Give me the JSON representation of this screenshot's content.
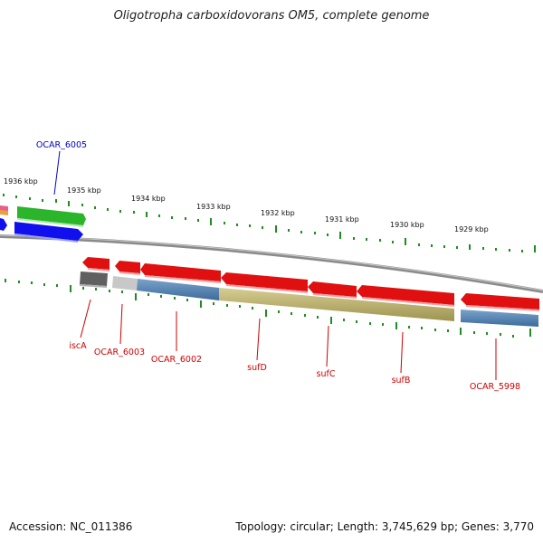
{
  "title": "Oligotropha carboxidovorans OM5, complete genome",
  "footer": {
    "accession": "Accession: NC_011386",
    "summary": "Topology: circular; Length: 3,745,629 bp; Genes: 3,770"
  },
  "scale_labels": [
    "1936 kbp",
    "1935 kbp",
    "1934 kbp",
    "1933 kbp",
    "1932 kbp",
    "1931 kbp",
    "1930 kbp",
    "1929 kbp"
  ],
  "genes": [
    {
      "name": "OCAR_6005",
      "color": "#0000cc"
    },
    {
      "name": "iscA",
      "color": "#cc0000"
    },
    {
      "name": "OCAR_6003",
      "color": "#cc0000"
    },
    {
      "name": "OCAR_6002",
      "color": "#cc0000"
    },
    {
      "name": "sufD",
      "color": "#cc0000"
    },
    {
      "name": "sufC",
      "color": "#cc0000"
    },
    {
      "name": "sufB",
      "color": "#cc0000"
    },
    {
      "name": "OCAR_5998",
      "color": "#cc0000"
    }
  ],
  "colors": {
    "backbone": "#888888",
    "forward_gene": "#2ab52a",
    "forward_gene_blue": "#1010ee",
    "reverse_gene": "#e01010",
    "tick": "#228b22",
    "blue_feature": "#4d7fb0",
    "olive_feature": "#b5aa6a",
    "gray_feature": "#666666"
  }
}
